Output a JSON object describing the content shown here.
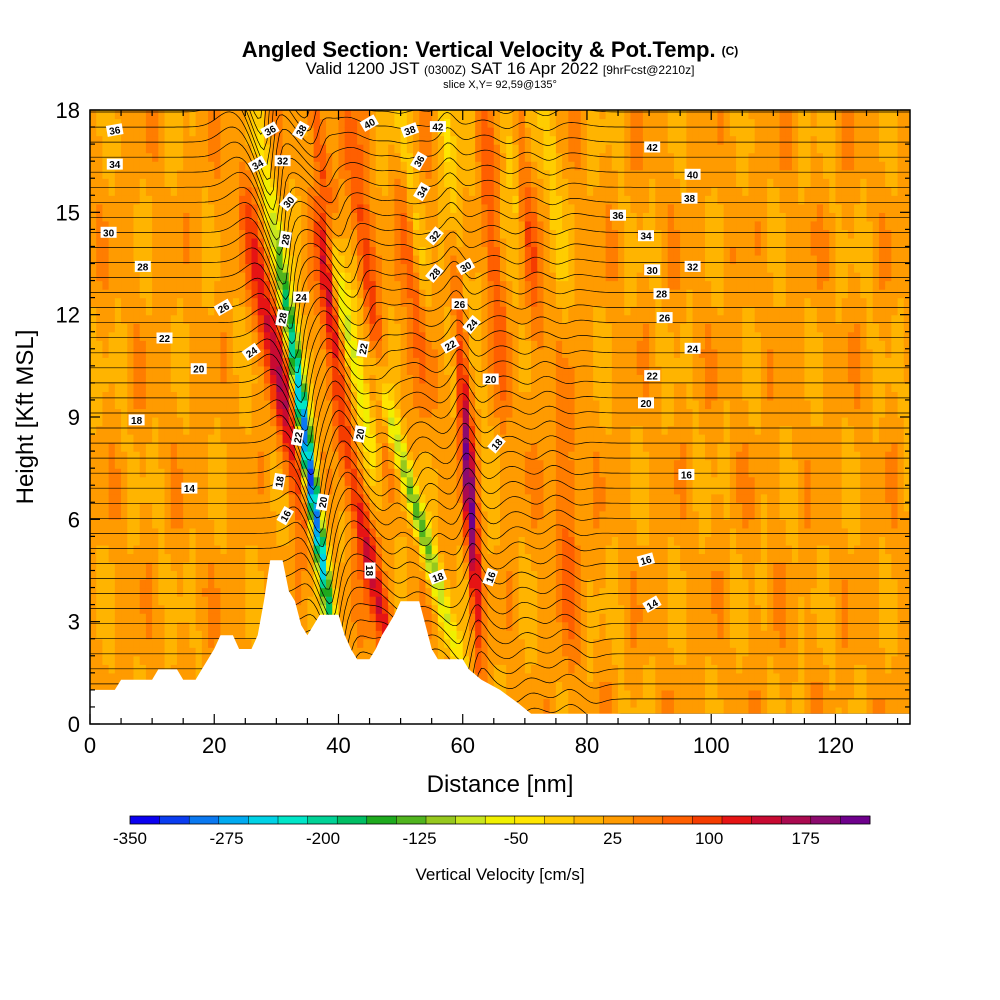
{
  "chart_data": {
    "type": "heatmap",
    "title": "Angled Section: Vertical Velocity & Pot.Temp.",
    "title_suffix": "(C)",
    "subtitle_parts": {
      "valid": "Valid 1200 JST",
      "utc": "(0300Z)",
      "date": "SAT 16 Apr 2022",
      "forecast": "[9hrFcst@2210z]"
    },
    "slice_label": "slice X,Y= 92,59@135°",
    "xlabel": "Distance [nm]",
    "ylabel": "Height [Kft MSL]",
    "xlim": [
      0,
      132
    ],
    "ylim": [
      0,
      18
    ],
    "x_ticks": [
      0,
      20,
      40,
      60,
      80,
      100,
      120
    ],
    "y_ticks": [
      0,
      3,
      6,
      9,
      12,
      15,
      18
    ],
    "colorbar": {
      "title": "Vertical Velocity [cm/s]",
      "min": -350,
      "max": 225,
      "tick_values": [
        -350,
        -275,
        -200,
        -125,
        -50,
        25,
        100,
        175
      ],
      "colors": [
        "#0a00f0",
        "#0a3cf0",
        "#0a78f0",
        "#00aaf0",
        "#00d2e6",
        "#00e6c8",
        "#00d296",
        "#00be64",
        "#1eaa1e",
        "#50b41e",
        "#96c81e",
        "#c8e61e",
        "#f0f000",
        "#ffe600",
        "#ffcd00",
        "#ffb400",
        "#ff9b00",
        "#ff7d00",
        "#ff5f00",
        "#f53c00",
        "#e61414",
        "#c80a32",
        "#aa0a50",
        "#8c0a6e",
        "#6e008c"
      ]
    },
    "series": [
      {
        "name": "Vertical Velocity [cm/s]",
        "kind": "filled-contour"
      },
      {
        "name": "Potential temperature [C]",
        "kind": "line-contour",
        "labeled_values": [
          14,
          16,
          18,
          20,
          22,
          24,
          26,
          28,
          30,
          32,
          34,
          36,
          38,
          40,
          42
        ]
      }
    ],
    "terrain_profile": [
      [
        0,
        1.0
      ],
      [
        4,
        1.0
      ],
      [
        5,
        1.3
      ],
      [
        10,
        1.3
      ],
      [
        11,
        1.6
      ],
      [
        14,
        1.6
      ],
      [
        15,
        1.3
      ],
      [
        17,
        1.3
      ],
      [
        18,
        1.6
      ],
      [
        19,
        1.9
      ],
      [
        20,
        2.2
      ],
      [
        21,
        2.6
      ],
      [
        23,
        2.6
      ],
      [
        24,
        2.2
      ],
      [
        26,
        2.2
      ],
      [
        27,
        2.6
      ],
      [
        28,
        3.6
      ],
      [
        29,
        4.8
      ],
      [
        31,
        4.8
      ],
      [
        32,
        3.9
      ],
      [
        33,
        3.6
      ],
      [
        34,
        2.9
      ],
      [
        35,
        2.6
      ],
      [
        36,
        2.9
      ],
      [
        37,
        3.2
      ],
      [
        40,
        3.2
      ],
      [
        41,
        2.6
      ],
      [
        42,
        2.2
      ],
      [
        43,
        1.9
      ],
      [
        45,
        1.9
      ],
      [
        46,
        2.2
      ],
      [
        47,
        2.6
      ],
      [
        48,
        2.9
      ],
      [
        49,
        3.2
      ],
      [
        50,
        3.6
      ],
      [
        53,
        3.6
      ],
      [
        54,
        2.9
      ],
      [
        55,
        2.2
      ],
      [
        56,
        1.9
      ],
      [
        60,
        1.9
      ],
      [
        61,
        1.6
      ],
      [
        63,
        1.3
      ],
      [
        66,
        1.0
      ],
      [
        69,
        0.6
      ],
      [
        71,
        0.3
      ],
      [
        132,
        0.3
      ]
    ],
    "updrafts": [
      {
        "x": 30,
        "y": 10.5,
        "amp": 130,
        "w": 1.8,
        "tilt": -0.45
      },
      {
        "x": 38,
        "y": 14.0,
        "amp": 150,
        "w": 1.4,
        "tilt": -0.2
      },
      {
        "x": 46,
        "y": 4.0,
        "amp": 130,
        "w": 1.5,
        "tilt": -0.5
      },
      {
        "x": 61,
        "y": 7.0,
        "amp": 180,
        "w": 1.0,
        "tilt": -0.15
      },
      {
        "x": 44,
        "y": 14.0,
        "amp": 80,
        "w": 1.5,
        "tilt": -0.3
      },
      {
        "x": 52,
        "y": 14.0,
        "amp": 80,
        "w": 1.5,
        "tilt": -0.2
      },
      {
        "x": 65,
        "y": 14.0,
        "amp": 60,
        "w": 1.5,
        "tilt": -0.2
      },
      {
        "x": 71,
        "y": 14.0,
        "amp": 60,
        "w": 1.4,
        "tilt": -0.2
      },
      {
        "x": 77,
        "y": 6.0,
        "amp": 40,
        "w": 2.0,
        "tilt": 0
      }
    ],
    "downdrafts": [
      {
        "x": 32,
        "y": 12.0,
        "amp": -150,
        "w": 1.2,
        "tilt": -0.4
      },
      {
        "x": 36,
        "y": 6.5,
        "amp": -330,
        "w": 1.0,
        "tilt": -0.35
      },
      {
        "x": 41,
        "y": 12.0,
        "amp": -130,
        "w": 1.3,
        "tilt": -0.5
      },
      {
        "x": 53,
        "y": 6.0,
        "amp": -160,
        "w": 1.2,
        "tilt": -0.7
      },
      {
        "x": 51,
        "y": 16.5,
        "amp": -90,
        "w": 1.2,
        "tilt": -0.3
      },
      {
        "x": 58,
        "y": 16.5,
        "amp": -60,
        "w": 1.2,
        "tilt": -0.3
      },
      {
        "x": 68,
        "y": 16.5,
        "amp": -50,
        "w": 1.2,
        "tilt": -0.2
      },
      {
        "x": 74,
        "y": 16.5,
        "amp": -50,
        "w": 1.2,
        "tilt": -0.2
      }
    ],
    "theta_contour_labels": [
      {
        "t": "36",
        "x": 4,
        "y": 17.4,
        "r": -10
      },
      {
        "t": "34",
        "x": 4,
        "y": 16.4,
        "r": 0
      },
      {
        "t": "30",
        "x": 3,
        "y": 14.4,
        "r": 0
      },
      {
        "t": "28",
        "x": 8.5,
        "y": 13.4,
        "r": 0
      },
      {
        "t": "26",
        "x": 21.5,
        "y": 12.2,
        "r": -30
      },
      {
        "t": "22",
        "x": 12,
        "y": 11.3,
        "r": 0
      },
      {
        "t": "20",
        "x": 17.5,
        "y": 10.4,
        "r": 0
      },
      {
        "t": "18",
        "x": 7.5,
        "y": 8.9,
        "r": 0
      },
      {
        "t": "14",
        "x": 16,
        "y": 6.9,
        "r": 0
      },
      {
        "t": "24",
        "x": 26,
        "y": 10.9,
        "r": -35
      },
      {
        "t": "34",
        "x": 27,
        "y": 16.4,
        "r": -30
      },
      {
        "t": "36",
        "x": 29,
        "y": 17.4,
        "r": -30
      },
      {
        "t": "38",
        "x": 34,
        "y": 17.4,
        "r": -60
      },
      {
        "t": "32",
        "x": 31,
        "y": 16.5,
        "r": 0
      },
      {
        "t": "30",
        "x": 32,
        "y": 15.3,
        "r": -50
      },
      {
        "t": "28",
        "x": 31.5,
        "y": 14.2,
        "r": -80
      },
      {
        "t": "24",
        "x": 34,
        "y": 12.5,
        "r": 0
      },
      {
        "t": "28",
        "x": 31,
        "y": 11.9,
        "r": -80
      },
      {
        "t": "22",
        "x": 33.5,
        "y": 8.4,
        "r": -80
      },
      {
        "t": "18",
        "x": 30.5,
        "y": 7.1,
        "r": -80
      },
      {
        "t": "16",
        "x": 31.5,
        "y": 6.1,
        "r": -60
      },
      {
        "t": "20",
        "x": 37.5,
        "y": 6.5,
        "r": -80
      },
      {
        "t": "20",
        "x": 43.5,
        "y": 8.5,
        "r": -80
      },
      {
        "t": "40",
        "x": 45,
        "y": 17.6,
        "r": -30
      },
      {
        "t": "22",
        "x": 44,
        "y": 11.0,
        "r": -80
      },
      {
        "t": "18",
        "x": 45,
        "y": 4.5,
        "r": 90
      },
      {
        "t": "38",
        "x": 51.5,
        "y": 17.4,
        "r": -20
      },
      {
        "t": "42",
        "x": 56,
        "y": 17.5,
        "r": 0
      },
      {
        "t": "36",
        "x": 53,
        "y": 16.5,
        "r": -60
      },
      {
        "t": "34",
        "x": 53.5,
        "y": 15.6,
        "r": -60
      },
      {
        "t": "32",
        "x": 55.5,
        "y": 14.3,
        "r": -50
      },
      {
        "t": "30",
        "x": 60.5,
        "y": 13.4,
        "r": -30
      },
      {
        "t": "28",
        "x": 55.5,
        "y": 13.2,
        "r": -50
      },
      {
        "t": "26",
        "x": 59.5,
        "y": 12.3,
        "r": 0
      },
      {
        "t": "24",
        "x": 61.5,
        "y": 11.7,
        "r": -50
      },
      {
        "t": "22",
        "x": 58,
        "y": 11.1,
        "r": -30
      },
      {
        "t": "20",
        "x": 64.5,
        "y": 10.1,
        "r": 0
      },
      {
        "t": "18",
        "x": 65.5,
        "y": 8.2,
        "r": -50
      },
      {
        "t": "18",
        "x": 56,
        "y": 4.3,
        "r": -20
      },
      {
        "t": "16",
        "x": 64.5,
        "y": 4.3,
        "r": -70
      },
      {
        "t": "42",
        "x": 90.5,
        "y": 16.9,
        "r": 0
      },
      {
        "t": "40",
        "x": 97,
        "y": 16.1,
        "r": 0
      },
      {
        "t": "38",
        "x": 96.5,
        "y": 15.4,
        "r": 0
      },
      {
        "t": "36",
        "x": 85,
        "y": 14.9,
        "r": 0
      },
      {
        "t": "34",
        "x": 89.5,
        "y": 14.3,
        "r": 0
      },
      {
        "t": "30",
        "x": 90.5,
        "y": 13.3,
        "r": 0
      },
      {
        "t": "32",
        "x": 97,
        "y": 13.4,
        "r": 0
      },
      {
        "t": "28",
        "x": 92,
        "y": 12.6,
        "r": 0
      },
      {
        "t": "26",
        "x": 92.5,
        "y": 11.9,
        "r": 0
      },
      {
        "t": "24",
        "x": 97,
        "y": 11.0,
        "r": 0
      },
      {
        "t": "22",
        "x": 90.5,
        "y": 10.2,
        "r": 0
      },
      {
        "t": "20",
        "x": 89.5,
        "y": 9.4,
        "r": 0
      },
      {
        "t": "16",
        "x": 96,
        "y": 7.3,
        "r": 0
      },
      {
        "t": "16",
        "x": 89.5,
        "y": 4.8,
        "r": -15
      },
      {
        "t": "14",
        "x": 90.5,
        "y": 3.5,
        "r": -30
      }
    ]
  }
}
